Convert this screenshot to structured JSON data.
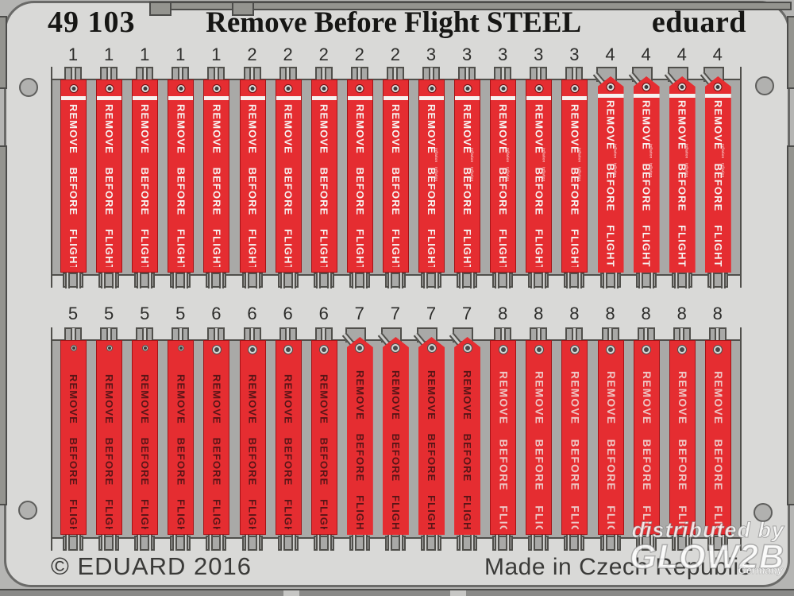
{
  "header": {
    "catalog": "49 103",
    "title": "Remove Before Flight STEEL",
    "brand": "eduard"
  },
  "tags": {
    "main_text": "REMOVE BEFORE FLIGHT",
    "micro_text": "Inflation Inflation",
    "top_row_numbers": [
      1,
      1,
      1,
      1,
      1,
      2,
      2,
      2,
      2,
      2,
      3,
      3,
      3,
      3,
      3,
      4,
      4,
      4,
      4
    ],
    "bottom_row_numbers": [
      5,
      5,
      5,
      5,
      6,
      6,
      6,
      6,
      7,
      7,
      7,
      7,
      8,
      8,
      8,
      8,
      8,
      8,
      8
    ],
    "type_styles": {
      "1": {
        "shape": "straight",
        "text": "white",
        "stripe": true,
        "micro": false,
        "grommet": "std"
      },
      "2": {
        "shape": "straight",
        "text": "white",
        "stripe": true,
        "micro": false,
        "grommet": "std"
      },
      "3": {
        "shape": "straight",
        "text": "white",
        "stripe": true,
        "micro": true,
        "grommet": "std"
      },
      "4": {
        "shape": "pennant",
        "text": "white",
        "stripe": true,
        "micro": true,
        "grommet": "std"
      },
      "5": {
        "shape": "straight",
        "text": "dark",
        "stripe": false,
        "micro": false,
        "grommet": "small"
      },
      "6": {
        "shape": "straight",
        "text": "dark",
        "stripe": false,
        "micro": false,
        "grommet": "large"
      },
      "7": {
        "shape": "pennant",
        "text": "dark",
        "stripe": false,
        "micro": false,
        "grommet": "large"
      },
      "8": {
        "shape": "straight",
        "text": "pink",
        "stripe": false,
        "micro": false,
        "grommet": "large"
      }
    }
  },
  "footer": {
    "copyright": "© EDUARD 2016",
    "made_in": "Made in Czech Republic"
  },
  "watermark": {
    "prefix": "distributed by",
    "brand": "GLOW2B",
    "suffix": "Germany"
  },
  "colors": {
    "tag_red": "#e52d31",
    "stripe_white": "#f6f2f0",
    "tag_text_white": "#f7f4f2",
    "tag_text_dark": "#581517",
    "tag_text_pink": "#eec6c4",
    "plate_gray": "#d9d9d7",
    "recess_gray": "#a9a9a7",
    "background_gray": "#b5b5b3"
  }
}
